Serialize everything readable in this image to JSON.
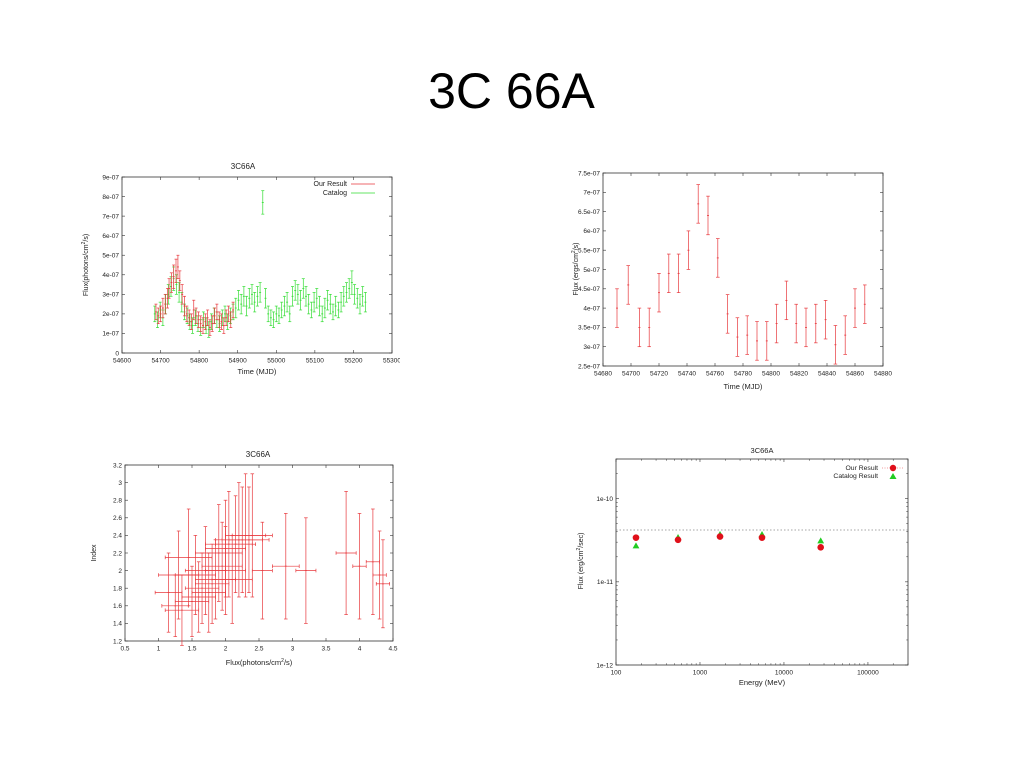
{
  "slide": {
    "title": "3C 66A"
  },
  "chart_data": [
    {
      "type": "scatter",
      "title": "3C66A",
      "xlabel": "Time (MJD)",
      "ylabel": "Flux(photons/cm^2/s)",
      "xlim": [
        54600,
        55300
      ],
      "ylim": [
        0,
        9e-07
      ],
      "xticks": [
        "54600",
        "54700",
        "54800",
        "54900",
        "55000",
        "55100",
        "55200",
        "55300"
      ],
      "yticks": [
        "0",
        "1e-07",
        "2e-07",
        "3e-07",
        "4e-07",
        "5e-07",
        "6e-07",
        "7e-07",
        "8e-07",
        "9e-07"
      ],
      "legend": "top-right",
      "colors": {
        "Our Result": "#e8383d",
        "Catalog": "#33dd33"
      },
      "series": [
        {
          "name": "Our Result",
          "x": [
            54688,
            54694,
            54700,
            54706,
            54712,
            54718,
            54722,
            54728,
            54734,
            54740,
            54745,
            54750,
            54756,
            54762,
            54768,
            54774,
            54780,
            54786,
            54792,
            54798,
            54804,
            54810,
            54816,
            54822,
            54828,
            54834,
            54840,
            54846,
            54852,
            54858,
            54864,
            54870,
            54876,
            54882,
            54888
          ],
          "y": [
            2.1e-07,
            1.9e-07,
            2e-07,
            2.3e-07,
            2.5e-07,
            2.8e-07,
            3.3e-07,
            3.6e-07,
            3.9e-07,
            4.2e-07,
            4.4e-07,
            3.7e-07,
            3e-07,
            2.4e-07,
            2e-07,
            1.8e-07,
            1.6e-07,
            2.2e-07,
            1.9e-07,
            1.7e-07,
            1.5e-07,
            1.4e-07,
            1.6e-07,
            1.8e-07,
            1.3e-07,
            1.5e-07,
            1.9e-07,
            2.1e-07,
            1.7e-07,
            1.6e-07,
            1.4e-07,
            1.8e-07,
            2e-07,
            1.7e-07,
            2.2e-07
          ],
          "yerr": [
            4e-08,
            4e-08,
            4e-08,
            5e-08,
            5e-08,
            5e-08,
            5e-08,
            5e-08,
            6e-08,
            6e-08,
            6e-08,
            5e-08,
            5e-08,
            5e-08,
            4e-08,
            4e-08,
            4e-08,
            5e-08,
            4e-08,
            4e-08,
            4e-08,
            4e-08,
            4e-08,
            4e-08,
            4e-08,
            4e-08,
            4e-08,
            4e-08,
            4e-08,
            4e-08,
            4e-08,
            4e-08,
            4e-08,
            4e-08,
            4e-08
          ]
        },
        {
          "name": "Catalog",
          "x": [
            54685,
            54692,
            54699,
            54706,
            54713,
            54720,
            54727,
            54734,
            54741,
            54748,
            54755,
            54762,
            54769,
            54776,
            54783,
            54790,
            54797,
            54804,
            54811,
            54818,
            54825,
            54832,
            54839,
            54846,
            54853,
            54860,
            54867,
            54874,
            54881,
            54888,
            54895,
            54902,
            54909,
            54916,
            54923,
            54930,
            54937,
            54944,
            54951,
            54958,
            54965,
            54972,
            54979,
            54986,
            54993,
            55000,
            55007,
            55014,
            55021,
            55028,
            55035,
            55042,
            55049,
            55056,
            55063,
            55070,
            55077,
            55084,
            55091,
            55098,
            55105,
            55112,
            55119,
            55126,
            55133,
            55140,
            55147,
            55154,
            55161,
            55168,
            55175,
            55182,
            55189,
            55196,
            55203,
            55210,
            55217,
            55224,
            55231
          ],
          "y": [
            2e-07,
            1.7e-07,
            2.2e-07,
            1.8e-07,
            2.5e-07,
            3e-07,
            3.4e-07,
            3.8e-07,
            3.5e-07,
            3.1e-07,
            2.6e-07,
            2.1e-07,
            1.9e-07,
            1.6e-07,
            1.4e-07,
            1.8e-07,
            1.5e-07,
            1.3e-07,
            1.7e-07,
            1.4e-07,
            1.2e-07,
            1.6e-07,
            1.9e-07,
            1.7e-07,
            1.5e-07,
            1.8e-07,
            2e-07,
            1.6e-07,
            1.9e-07,
            2.1e-07,
            2.3e-07,
            2.7e-07,
            2.5e-07,
            2.9e-07,
            2.4e-07,
            2.8e-07,
            3e-07,
            2.6e-07,
            2.9e-07,
            3.1e-07,
            7.7e-07,
            2.8e-07,
            2e-07,
            1.8e-07,
            1.7e-07,
            2e-07,
            1.9e-07,
            2.2e-07,
            2.4e-07,
            2.6e-07,
            2e-07,
            2.9e-07,
            3.2e-07,
            3e-07,
            2.7e-07,
            3.3e-07,
            2.9e-07,
            2.5e-07,
            2.2e-07,
            2.6e-07,
            2.8e-07,
            2.4e-07,
            2e-07,
            2.3e-07,
            2.7e-07,
            2.5e-07,
            2.1e-07,
            2.4e-07,
            2.2e-07,
            2.6e-07,
            2.9e-07,
            3.1e-07,
            3.3e-07,
            3.6e-07,
            3e-07,
            2.8e-07,
            2.5e-07,
            2.9e-07,
            2.6e-07
          ],
          "yerr": [
            4e-08,
            4e-08,
            4e-08,
            4e-08,
            5e-08,
            5e-08,
            5e-08,
            6e-08,
            5e-08,
            5e-08,
            5e-08,
            4e-08,
            4e-08,
            4e-08,
            4e-08,
            4e-08,
            4e-08,
            4e-08,
            4e-08,
            4e-08,
            4e-08,
            4e-08,
            4e-08,
            4e-08,
            4e-08,
            4e-08,
            4e-08,
            4e-08,
            4e-08,
            4e-08,
            5e-08,
            5e-08,
            5e-08,
            5e-08,
            5e-08,
            5e-08,
            5e-08,
            5e-08,
            5e-08,
            5e-08,
            6e-08,
            5e-08,
            4e-08,
            4e-08,
            4e-08,
            4e-08,
            4e-08,
            4e-08,
            5e-08,
            5e-08,
            4e-08,
            5e-08,
            5e-08,
            5e-08,
            5e-08,
            5e-08,
            5e-08,
            5e-08,
            4e-08,
            5e-08,
            5e-08,
            5e-08,
            4e-08,
            5e-08,
            5e-08,
            5e-08,
            4e-08,
            5e-08,
            4e-08,
            5e-08,
            5e-08,
            5e-08,
            5e-08,
            6e-08,
            5e-08,
            5e-08,
            5e-08,
            5e-08,
            5e-08
          ]
        }
      ]
    },
    {
      "type": "scatter",
      "title": "",
      "xlabel": "Time (MJD)",
      "ylabel": "Flux (ergs/cm^2/s)",
      "xlim": [
        54680,
        54880
      ],
      "ylim": [
        2.5e-07,
        7.5e-07
      ],
      "xticks": [
        "54680",
        "54700",
        "54720",
        "54740",
        "54760",
        "54780",
        "54800",
        "54820",
        "54840",
        "54860",
        "54880"
      ],
      "yticks": [
        "2.5e-07",
        "3e-07",
        "3.5e-07",
        "4e-07",
        "4.5e-07",
        "5e-07",
        "5.5e-07",
        "6e-07",
        "6.5e-07",
        "7e-07",
        "7.5e-07"
      ],
      "colors": {
        "points": "#e8383d"
      },
      "series": [
        {
          "x": [
            54690,
            54698,
            54706,
            54713,
            54720,
            54727,
            54734,
            54741,
            54748,
            54755,
            54762,
            54769,
            54776,
            54783,
            54790,
            54797,
            54804,
            54811,
            54818,
            54825,
            54832,
            54839,
            54846,
            54853,
            54860,
            54867
          ],
          "y": [
            4e-07,
            4.6e-07,
            3.5e-07,
            3.5e-07,
            4.4e-07,
            4.9e-07,
            4.9e-07,
            5.5e-07,
            6.7e-07,
            6.4e-07,
            5.3e-07,
            3.85e-07,
            3.25e-07,
            3.3e-07,
            3.15e-07,
            3.15e-07,
            3.6e-07,
            4.2e-07,
            3.6e-07,
            3.5e-07,
            3.6e-07,
            3.7e-07,
            3.05e-07,
            3.3e-07,
            4e-07,
            4.1e-07
          ],
          "yerr": [
            5e-08,
            5e-08,
            5e-08,
            5e-08,
            5e-08,
            5e-08,
            5e-08,
            5e-08,
            5e-08,
            5e-08,
            5e-08,
            5e-08,
            5e-08,
            5e-08,
            5e-08,
            5e-08,
            5e-08,
            5e-08,
            5e-08,
            5e-08,
            5e-08,
            5e-08,
            5e-08,
            5e-08,
            5e-08,
            5e-08
          ]
        }
      ]
    },
    {
      "type": "scatter",
      "title": "3C66A",
      "xlabel": "Flux(photons/cm^2/s)",
      "ylabel": "Index",
      "xlim": [
        0.5,
        4.5
      ],
      "ylim": [
        1.2,
        3.2
      ],
      "xticks": [
        "0.5",
        "1",
        "1.5",
        "2",
        "2.5",
        "3",
        "3.5",
        "4",
        "4.5"
      ],
      "yticks": [
        "1.2",
        "1.4",
        "1.6",
        "1.8",
        "2",
        "2.2",
        "2.4",
        "2.6",
        "2.8",
        "3",
        "3.2"
      ],
      "colors": {
        "points": "#e8383d"
      },
      "series": [
        {
          "x": [
            1.15,
            1.3,
            1.45,
            1.55,
            1.7,
            1.8,
            1.9,
            2.0,
            2.05,
            2.1,
            2.2,
            2.3,
            2.4,
            1.35,
            1.6,
            1.75,
            1.95,
            2.15,
            2.25,
            1.5,
            1.85,
            2.0,
            2.35,
            2.9,
            3.2,
            3.8,
            4.0,
            4.2,
            4.3,
            4.35,
            1.25,
            1.65,
            2.55
          ],
          "y": [
            1.75,
            1.95,
            2.15,
            1.95,
            2.0,
            1.85,
            2.2,
            2.25,
            2.3,
            1.9,
            2.35,
            2.4,
            2.4,
            1.55,
            1.7,
            1.75,
            2.05,
            2.3,
            2.35,
            1.65,
            1.9,
            2.0,
            2.35,
            2.05,
            2.0,
            2.2,
            2.05,
            2.1,
            1.95,
            1.85,
            1.6,
            1.8,
            2.0
          ],
          "xerr": [
            0.2,
            0.3,
            0.35,
            0.3,
            0.3,
            0.25,
            0.35,
            0.3,
            0.35,
            0.3,
            0.35,
            0.3,
            0.3,
            0.25,
            0.25,
            0.25,
            0.3,
            0.3,
            0.3,
            0.25,
            0.3,
            0.3,
            0.3,
            0.2,
            0.15,
            0.15,
            0.1,
            0.1,
            0.1,
            0.1,
            0.2,
            0.25,
            0.15
          ],
          "yerr": [
            0.45,
            0.5,
            0.55,
            0.45,
            0.5,
            0.45,
            0.55,
            0.55,
            0.6,
            0.5,
            0.65,
            0.7,
            0.7,
            0.4,
            0.4,
            0.45,
            0.5,
            0.55,
            0.6,
            0.4,
            0.45,
            0.5,
            0.6,
            0.6,
            0.6,
            0.7,
            0.6,
            0.6,
            0.5,
            0.5,
            0.35,
            0.4,
            0.55
          ]
        }
      ]
    },
    {
      "type": "scatter",
      "title": "3C66A",
      "xlabel": "Energy (MeV)",
      "ylabel": "Flux (erg/cm^2/sec)",
      "xscale": "log",
      "yscale": "log",
      "xlim": [
        100,
        300000
      ],
      "ylim": [
        1e-12,
        3e-10
      ],
      "xticks": [
        "100",
        "1000",
        "10000",
        "100000"
      ],
      "yticks": [
        "1e-12",
        "1e-11",
        "1e-10"
      ],
      "legend": "top-right",
      "colors": {
        "Our Result": "#e0101a",
        "Catalog Result": "#22cc22",
        "dotted-line": "#888888"
      },
      "reference_line": 4.2e-11,
      "series": [
        {
          "name": "Our Result",
          "x": [
            173,
            548,
            1732,
            5477,
            27386
          ],
          "y": [
            3.4e-11,
            3.2e-11,
            3.5e-11,
            3.4e-11,
            2.6e-11
          ]
        },
        {
          "name": "Catalog Result",
          "x": [
            173,
            548,
            1732,
            5477,
            27386
          ],
          "y": [
            2.7e-11,
            3.4e-11,
            3.7e-11,
            3.7e-11,
            3.1e-11
          ]
        }
      ]
    }
  ]
}
